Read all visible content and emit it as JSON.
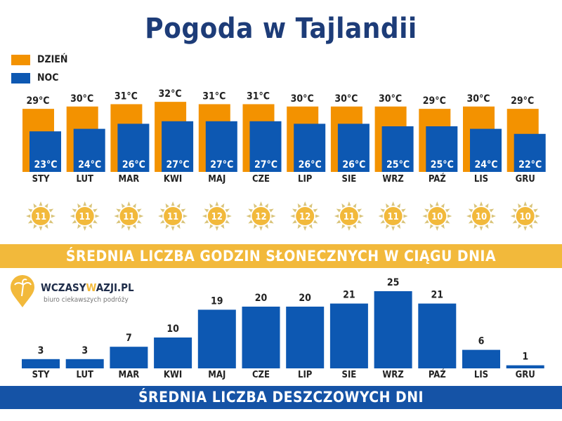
{
  "title": "Pogoda w Tajlandii",
  "legend": {
    "day": "DZIEŃ",
    "night": "NOC"
  },
  "colors": {
    "day": "#f39200",
    "night": "#0d58b2",
    "sun": "#f2b93b",
    "title": "#1d3c78",
    "rain_band": "#1553a6"
  },
  "sun_band": "ŚREDNIA LICZBA GODZIN SŁONECZNYCH W CIĄGU DNIA",
  "rain_band": "ŚREDNIA LICZBA DESZCZOWYCH DNI",
  "logo": {
    "name_a": "WCZASY",
    "name_w": "W",
    "name_b": "AZJI.PL",
    "tagline": "biuro ciekawszych podróży"
  },
  "chart_data": [
    {
      "type": "bar",
      "categories": [
        "STY",
        "LUT",
        "MAR",
        "KWI",
        "MAJ",
        "CZE",
        "LIP",
        "SIE",
        "WRZ",
        "PAŹ",
        "LIS",
        "GRU"
      ],
      "unit": "°C",
      "series": [
        {
          "name": "DZIEŃ",
          "values": [
            29,
            30,
            31,
            32,
            31,
            31,
            30,
            30,
            30,
            29,
            30,
            29
          ]
        },
        {
          "name": "NOC",
          "values": [
            23,
            24,
            26,
            27,
            27,
            27,
            26,
            26,
            25,
            25,
            24,
            22
          ]
        }
      ]
    },
    {
      "type": "table",
      "title": "ŚREDNIA LICZBA GODZIN SŁONECZNYCH W CIĄGU DNIA",
      "categories": [
        "STY",
        "LUT",
        "MAR",
        "KWI",
        "MAJ",
        "CZE",
        "LIP",
        "SIE",
        "WRZ",
        "PAŹ",
        "LIS",
        "GRU"
      ],
      "values": [
        11,
        11,
        11,
        11,
        12,
        12,
        12,
        11,
        11,
        10,
        10,
        10
      ]
    },
    {
      "type": "bar",
      "title": "ŚREDNIA LICZBA DESZCZOWYCH DNI",
      "categories": [
        "STY",
        "LUT",
        "MAR",
        "KWI",
        "MAJ",
        "CZE",
        "LIP",
        "SIE",
        "WRZ",
        "PAŹ",
        "LIS",
        "GRU"
      ],
      "values": [
        3,
        3,
        7,
        10,
        19,
        20,
        20,
        21,
        25,
        21,
        6,
        1
      ]
    }
  ]
}
